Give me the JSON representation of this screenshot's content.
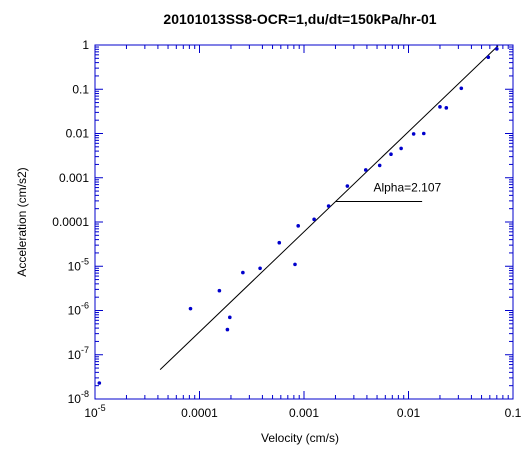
{
  "chart_data": {
    "type": "scatter",
    "title": "20101013SS8-OCR=1,du/dt=150kPa/hr-01",
    "xlabel": "Velocity (cm/s)",
    "ylabel": "Acceleration (cm/s2)",
    "x_scale": "log",
    "y_scale": "log",
    "xlim": [
      1e-05,
      0.1
    ],
    "ylim": [
      1e-08,
      1
    ],
    "grid": false,
    "x_ticks": [
      {
        "value": 1e-05,
        "base": "10",
        "exp": "-5"
      },
      {
        "value": 0.0001,
        "label": "0.0001"
      },
      {
        "value": 0.001,
        "label": "0.001"
      },
      {
        "value": 0.01,
        "label": "0.01"
      },
      {
        "value": 0.1,
        "label": "0.1"
      }
    ],
    "y_ticks": [
      {
        "value": 1,
        "label": "1"
      },
      {
        "value": 0.1,
        "label": "0.1"
      },
      {
        "value": 0.01,
        "label": "0.01"
      },
      {
        "value": 0.001,
        "label": "0.001"
      },
      {
        "value": 0.0001,
        "label": "0.0001"
      },
      {
        "value": 1e-05,
        "base": "10",
        "exp": "-5"
      },
      {
        "value": 1e-06,
        "base": "10",
        "exp": "-6"
      },
      {
        "value": 1e-07,
        "base": "10",
        "exp": "-7"
      },
      {
        "value": 1e-08,
        "base": "10",
        "exp": "-8"
      }
    ],
    "series": [
      {
        "color": "#0000cc",
        "marker": "dot",
        "points": [
          [
            1.1e-05,
            2.3e-08
          ],
          [
            8.2e-05,
            1.1e-06
          ],
          [
            0.000155,
            2.8e-06
          ],
          [
            0.000185,
            3.7e-07
          ],
          [
            0.000195,
            7e-07
          ],
          [
            0.00026,
            7.2e-06
          ],
          [
            0.00038,
            9e-06
          ],
          [
            0.00058,
            3.4e-05
          ],
          [
            0.00082,
            1.1e-05
          ],
          [
            0.00088,
            8.2e-05
          ],
          [
            0.00125,
            0.000115
          ],
          [
            0.00172,
            0.00023
          ],
          [
            0.0026,
            0.00065
          ],
          [
            0.0039,
            0.0015
          ],
          [
            0.0053,
            0.0019
          ],
          [
            0.0068,
            0.0034
          ],
          [
            0.0085,
            0.0046
          ],
          [
            0.0112,
            0.0098
          ],
          [
            0.014,
            0.01
          ],
          [
            0.02,
            0.04
          ],
          [
            0.023,
            0.038
          ],
          [
            0.032,
            0.105
          ],
          [
            0.058,
            0.53
          ],
          [
            0.07,
            0.82
          ]
        ]
      }
    ],
    "fit_line": {
      "color": "#000000",
      "points": [
        [
          4.2e-05,
          4.6e-08
        ],
        [
          0.072,
          0.96
        ]
      ]
    },
    "annotation": {
      "text": "Alpha=2.107",
      "anchor_data": [
        0.002,
        0.00029
      ],
      "line_end_data": [
        0.0135,
        0.00029
      ]
    },
    "colors": {
      "axes": "#0000cc",
      "fit": "#000000",
      "points": "#0000cc"
    }
  }
}
